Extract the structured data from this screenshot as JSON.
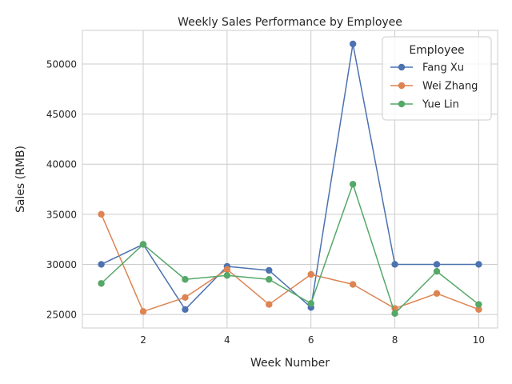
{
  "chart_data": {
    "type": "line",
    "title": "Weekly Sales Performance by Employee",
    "xlabel": "Week Number",
    "ylabel": "Sales (RMB)",
    "x": [
      1,
      2,
      3,
      4,
      5,
      6,
      7,
      8,
      9,
      10
    ],
    "xlim": [
      0.55,
      10.45
    ],
    "ylim": [
      23650,
      53350
    ],
    "xticks": [
      2,
      4,
      6,
      8,
      10
    ],
    "yticks": [
      25000,
      30000,
      35000,
      40000,
      45000,
      50000
    ],
    "grid": true,
    "legend": {
      "title": "Employee",
      "placement": "top-right"
    },
    "series": [
      {
        "name": "Fang Xu",
        "color": "#4c72b0",
        "values": [
          30000,
          32000,
          25500,
          29800,
          29400,
          25700,
          52000,
          30000,
          30000,
          30000
        ]
      },
      {
        "name": "Wei Zhang",
        "color": "#dd8452",
        "values": [
          35000,
          25300,
          26700,
          29500,
          26000,
          29000,
          28000,
          25600,
          27100,
          25500
        ]
      },
      {
        "name": "Yue Lin",
        "color": "#55a868",
        "values": [
          28100,
          32000,
          28500,
          28900,
          28500,
          26100,
          38000,
          25100,
          29300,
          26000
        ]
      }
    ]
  }
}
